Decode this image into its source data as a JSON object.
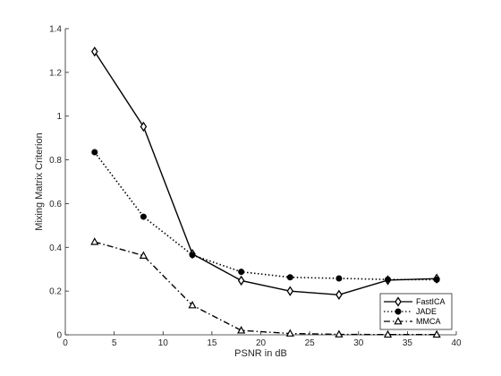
{
  "chart_data": {
    "type": "line",
    "title": "",
    "xlabel": "PSNR in dB",
    "ylabel": "Mixing Matrix Criterion",
    "xlim": [
      0,
      40
    ],
    "ylim": [
      0,
      1.4
    ],
    "xticks": [
      0,
      5,
      10,
      15,
      20,
      25,
      30,
      35,
      40
    ],
    "xtick_labels": [
      "0",
      "5",
      "10",
      "15",
      "20",
      "25",
      "30",
      "35",
      "40"
    ],
    "yticks": [
      0,
      0.2,
      0.4,
      0.6,
      0.8,
      1,
      1.2,
      1.4
    ],
    "ytick_labels": [
      "0",
      "0.2",
      "0.4",
      "0.6",
      "0.8",
      "1",
      "1.2",
      "1.4"
    ],
    "grid": false,
    "legend_position": "bottom-right",
    "x": [
      3,
      8,
      13,
      18,
      23,
      28,
      33,
      38
    ],
    "series": [
      {
        "name": "FastICA",
        "values": [
          1.295,
          0.952,
          0.37,
          0.248,
          0.2,
          0.183,
          0.25,
          0.257
        ],
        "line_style": "solid",
        "marker": "diamond",
        "color": "#000000"
      },
      {
        "name": "JADE",
        "values": [
          0.835,
          0.54,
          0.365,
          0.288,
          0.263,
          0.258,
          0.253,
          0.252
        ],
        "line_style": "dotted",
        "marker": "circle",
        "color": "#000000"
      },
      {
        "name": "MMCA",
        "values": [
          0.425,
          0.362,
          0.135,
          0.02,
          0.006,
          0.002,
          0.001,
          0.001
        ],
        "line_style": "dashdot",
        "marker": "triangle",
        "color": "#000000"
      }
    ]
  }
}
